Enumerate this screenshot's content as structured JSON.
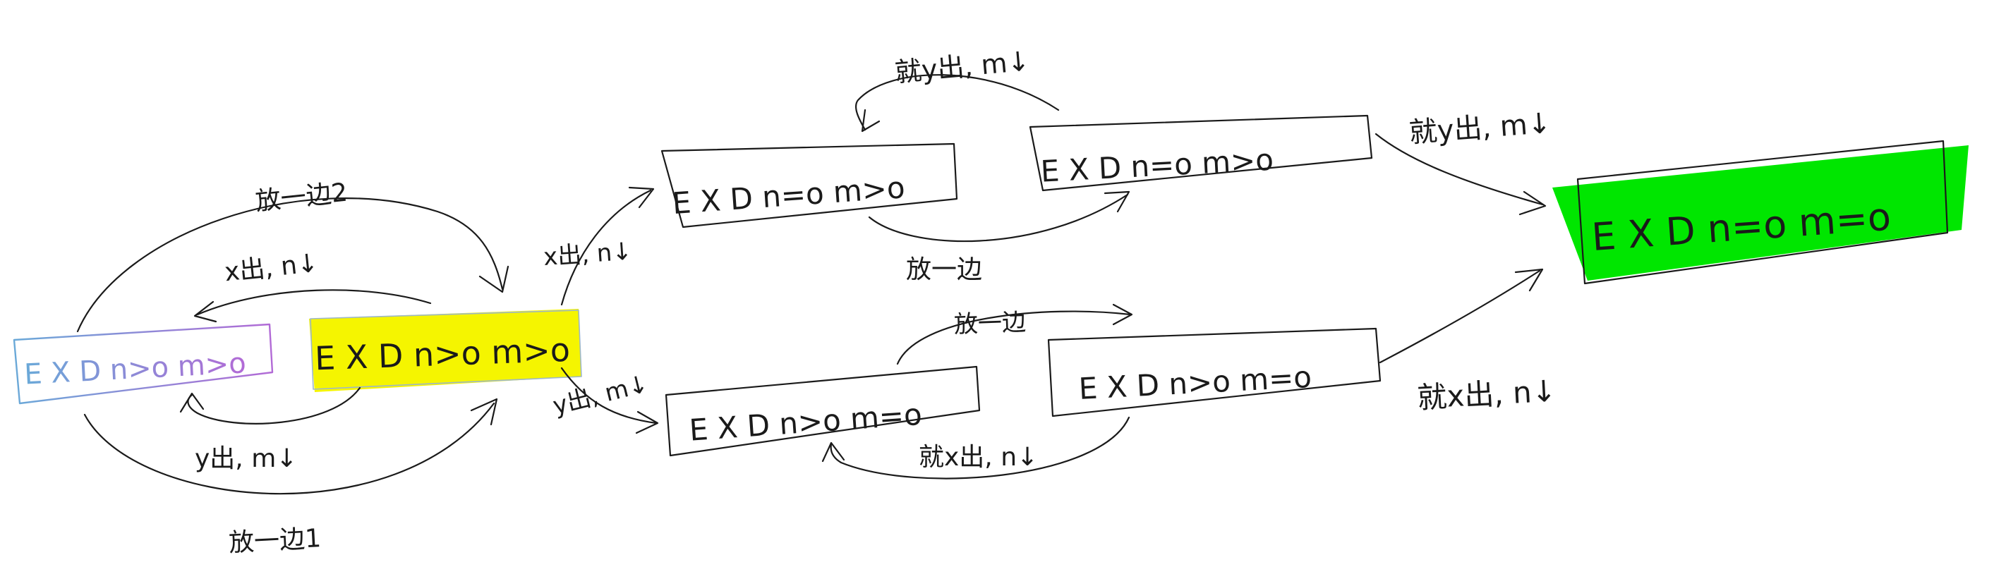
{
  "colors": {
    "ink": "#1a1a1a",
    "highlight_start": "#f5f500",
    "highlight_goal": "#00e600",
    "start_box_stroke_a": "#6aa9d8",
    "start_box_stroke_b": "#b26ad6"
  },
  "nodes": [
    {
      "id": "n1",
      "label": "E X D  n>o m>o",
      "style": "gradient"
    },
    {
      "id": "n2",
      "label": "E X D  n>o m>o",
      "style": "yellow"
    },
    {
      "id": "n3",
      "label": "E X D  n=o m>o",
      "style": "plain"
    },
    {
      "id": "n4",
      "label": "E X D  n=o m>o",
      "style": "plain"
    },
    {
      "id": "n5",
      "label": "E X D  n>o m=o",
      "style": "plain"
    },
    {
      "id": "n6",
      "label": "E X D  n>o m=o",
      "style": "plain"
    },
    {
      "id": "n7",
      "label": "E X D  n=o m=o",
      "style": "green"
    }
  ],
  "edges": [
    {
      "id": "e1",
      "label": "放一边2"
    },
    {
      "id": "e2",
      "label": "x出, n↓"
    },
    {
      "id": "e3",
      "label": "y出, m↓"
    },
    {
      "id": "e4",
      "label": "放一边1"
    },
    {
      "id": "e5",
      "label": "x出, n↓"
    },
    {
      "id": "e6",
      "label": "y出, m↓"
    },
    {
      "id": "e7",
      "label": "就y出, m↓"
    },
    {
      "id": "e8",
      "label": "放一边"
    },
    {
      "id": "e9",
      "label": "放一边"
    },
    {
      "id": "e10",
      "label": "就x出, n↓"
    },
    {
      "id": "e11",
      "label": "就y出, m↓"
    },
    {
      "id": "e12",
      "label": "就x出, n↓"
    }
  ]
}
